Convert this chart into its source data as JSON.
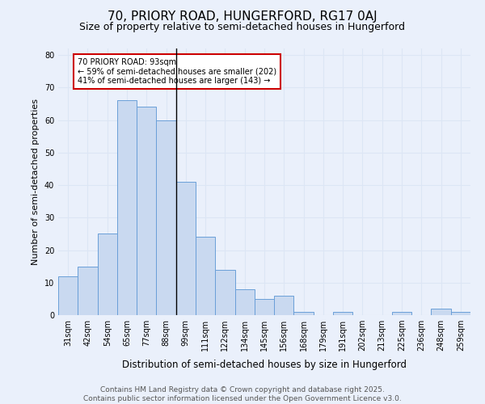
{
  "title1": "70, PRIORY ROAD, HUNGERFORD, RG17 0AJ",
  "title2": "Size of property relative to semi-detached houses in Hungerford",
  "xlabel": "Distribution of semi-detached houses by size in Hungerford",
  "ylabel": "Number of semi-detached properties",
  "categories": [
    "31sqm",
    "42sqm",
    "54sqm",
    "65sqm",
    "77sqm",
    "88sqm",
    "99sqm",
    "111sqm",
    "122sqm",
    "134sqm",
    "145sqm",
    "156sqm",
    "168sqm",
    "179sqm",
    "191sqm",
    "202sqm",
    "213sqm",
    "225sqm",
    "236sqm",
    "248sqm",
    "259sqm"
  ],
  "values": [
    12,
    15,
    25,
    66,
    64,
    60,
    41,
    24,
    14,
    8,
    5,
    6,
    1,
    0,
    1,
    0,
    0,
    1,
    0,
    2,
    1
  ],
  "bar_color": "#c9d9f0",
  "bar_edge_color": "#6a9fd8",
  "property_bin_index": 5,
  "annotation_text": "70 PRIORY ROAD: 93sqm\n← 59% of semi-detached houses are smaller (202)\n41% of semi-detached houses are larger (143) →",
  "annotation_box_color": "#ffffff",
  "annotation_box_edge_color": "#cc0000",
  "vline_color": "#000000",
  "ylim": [
    0,
    82
  ],
  "yticks": [
    0,
    10,
    20,
    30,
    40,
    50,
    60,
    70,
    80
  ],
  "grid_color": "#dce6f5",
  "background_color": "#eaf0fb",
  "footer_text": "Contains HM Land Registry data © Crown copyright and database right 2025.\nContains public sector information licensed under the Open Government Licence v3.0.",
  "title1_fontsize": 11,
  "title2_fontsize": 9,
  "xlabel_fontsize": 8.5,
  "ylabel_fontsize": 8,
  "tick_fontsize": 7,
  "footer_fontsize": 6.5,
  "ann_fontsize": 7
}
